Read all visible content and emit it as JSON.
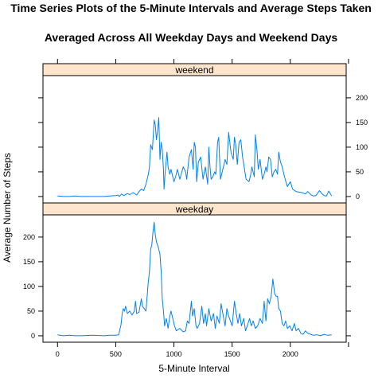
{
  "chart_data": {
    "type": "line",
    "title_line1": "Time Series Plots of the 5-Minute Intervals and Average Steps Taken",
    "title_line2": "Averaged Across All Weekday Days and Weekend Days",
    "xlabel": "5-Minute Interval",
    "ylabel": "Average Number of Steps",
    "xlim": [
      -125,
      2480
    ],
    "ylim": [
      -13,
      245
    ],
    "x_ticks": [
      0,
      500,
      1000,
      1500,
      2000
    ],
    "y_ticks": [
      0,
      50,
      100,
      150,
      200
    ],
    "line_color": "#0080ff",
    "strip_color": "#ffe5cc",
    "panels": [
      {
        "strip": "weekend",
        "y_axis_side": "right",
        "points": [
          [
            0,
            1
          ],
          [
            50,
            0
          ],
          [
            100,
            0
          ],
          [
            150,
            1
          ],
          [
            200,
            0
          ],
          [
            300,
            0
          ],
          [
            400,
            0
          ],
          [
            450,
            1
          ],
          [
            500,
            2
          ],
          [
            520,
            3
          ],
          [
            530,
            0
          ],
          [
            550,
            5
          ],
          [
            570,
            2
          ],
          [
            600,
            6
          ],
          [
            620,
            4
          ],
          [
            650,
            8
          ],
          [
            680,
            3
          ],
          [
            700,
            10
          ],
          [
            720,
            15
          ],
          [
            740,
            12
          ],
          [
            760,
            25
          ],
          [
            780,
            45
          ],
          [
            790,
            60
          ],
          [
            800,
            105
          ],
          [
            815,
            95
          ],
          [
            830,
            155
          ],
          [
            840,
            145
          ],
          [
            850,
            115
          ],
          [
            860,
            135
          ],
          [
            870,
            160
          ],
          [
            880,
            75
          ],
          [
            890,
            110
          ],
          [
            900,
            95
          ],
          [
            910,
            55
          ],
          [
            915,
            15
          ],
          [
            925,
            50
          ],
          [
            940,
            90
          ],
          [
            950,
            60
          ],
          [
            965,
            45
          ],
          [
            975,
            55
          ],
          [
            1000,
            30
          ],
          [
            1015,
            40
          ],
          [
            1030,
            55
          ],
          [
            1050,
            35
          ],
          [
            1080,
            60
          ],
          [
            1100,
            50
          ],
          [
            1110,
            35
          ],
          [
            1130,
            80
          ],
          [
            1150,
            95
          ],
          [
            1165,
            55
          ],
          [
            1175,
            110
          ],
          [
            1185,
            100
          ],
          [
            1195,
            30
          ],
          [
            1210,
            70
          ],
          [
            1230,
            80
          ],
          [
            1250,
            35
          ],
          [
            1270,
            60
          ],
          [
            1290,
            25
          ],
          [
            1300,
            100
          ],
          [
            1310,
            60
          ],
          [
            1320,
            35
          ],
          [
            1335,
            40
          ],
          [
            1350,
            50
          ],
          [
            1360,
            45
          ],
          [
            1375,
            110
          ],
          [
            1385,
            120
          ],
          [
            1400,
            35
          ],
          [
            1420,
            55
          ],
          [
            1440,
            75
          ],
          [
            1455,
            65
          ],
          [
            1470,
            130
          ],
          [
            1490,
            90
          ],
          [
            1510,
            75
          ],
          [
            1520,
            120
          ],
          [
            1530,
            105
          ],
          [
            1545,
            65
          ],
          [
            1560,
            110
          ],
          [
            1575,
            115
          ],
          [
            1590,
            80
          ],
          [
            1600,
            65
          ],
          [
            1620,
            35
          ],
          [
            1645,
            30
          ],
          [
            1660,
            45
          ],
          [
            1670,
            60
          ],
          [
            1690,
            40
          ],
          [
            1700,
            125
          ],
          [
            1715,
            90
          ],
          [
            1725,
            55
          ],
          [
            1740,
            75
          ],
          [
            1760,
            35
          ],
          [
            1775,
            45
          ],
          [
            1790,
            60
          ],
          [
            1800,
            50
          ],
          [
            1815,
            80
          ],
          [
            1830,
            75
          ],
          [
            1845,
            40
          ],
          [
            1860,
            50
          ],
          [
            1875,
            55
          ],
          [
            1890,
            45
          ],
          [
            1900,
            90
          ],
          [
            1915,
            70
          ],
          [
            1930,
            60
          ],
          [
            1950,
            40
          ],
          [
            1975,
            20
          ],
          [
            2000,
            30
          ],
          [
            2020,
            15
          ],
          [
            2050,
            10
          ],
          [
            2100,
            8
          ],
          [
            2130,
            5
          ],
          [
            2150,
            10
          ],
          [
            2180,
            3
          ],
          [
            2200,
            1
          ],
          [
            2220,
            2
          ],
          [
            2250,
            12
          ],
          [
            2270,
            6
          ],
          [
            2290,
            2
          ],
          [
            2310,
            1
          ],
          [
            2330,
            11
          ],
          [
            2355,
            1
          ]
        ]
      },
      {
        "strip": "weekday",
        "y_axis_side": "left",
        "points": [
          [
            0,
            2
          ],
          [
            50,
            0
          ],
          [
            100,
            1
          ],
          [
            150,
            0
          ],
          [
            200,
            0
          ],
          [
            300,
            1
          ],
          [
            400,
            0
          ],
          [
            450,
            1
          ],
          [
            500,
            1
          ],
          [
            525,
            2
          ],
          [
            545,
            22
          ],
          [
            555,
            45
          ],
          [
            565,
            55
          ],
          [
            575,
            50
          ],
          [
            585,
            60
          ],
          [
            600,
            45
          ],
          [
            620,
            50
          ],
          [
            640,
            42
          ],
          [
            660,
            50
          ],
          [
            670,
            70
          ],
          [
            680,
            45
          ],
          [
            700,
            48
          ],
          [
            720,
            75
          ],
          [
            730,
            60
          ],
          [
            745,
            55
          ],
          [
            760,
            50
          ],
          [
            780,
            110
          ],
          [
            790,
            130
          ],
          [
            800,
            175
          ],
          [
            810,
            185
          ],
          [
            820,
            210
          ],
          [
            830,
            230
          ],
          [
            840,
            205
          ],
          [
            850,
            190
          ],
          [
            865,
            180
          ],
          [
            880,
            165
          ],
          [
            890,
            130
          ],
          [
            900,
            75
          ],
          [
            910,
            50
          ],
          [
            920,
            20
          ],
          [
            935,
            35
          ],
          [
            950,
            15
          ],
          [
            965,
            40
          ],
          [
            975,
            50
          ],
          [
            990,
            35
          ],
          [
            1005,
            20
          ],
          [
            1020,
            10
          ],
          [
            1050,
            15
          ],
          [
            1080,
            8
          ],
          [
            1100,
            10
          ],
          [
            1115,
            30
          ],
          [
            1130,
            25
          ],
          [
            1150,
            70
          ],
          [
            1160,
            40
          ],
          [
            1175,
            55
          ],
          [
            1190,
            20
          ],
          [
            1200,
            15
          ],
          [
            1220,
            25
          ],
          [
            1240,
            60
          ],
          [
            1255,
            25
          ],
          [
            1270,
            45
          ],
          [
            1280,
            20
          ],
          [
            1300,
            55
          ],
          [
            1320,
            30
          ],
          [
            1340,
            45
          ],
          [
            1355,
            15
          ],
          [
            1370,
            40
          ],
          [
            1390,
            25
          ],
          [
            1405,
            65
          ],
          [
            1420,
            45
          ],
          [
            1440,
            20
          ],
          [
            1455,
            55
          ],
          [
            1470,
            40
          ],
          [
            1485,
            30
          ],
          [
            1500,
            20
          ],
          [
            1520,
            70
          ],
          [
            1535,
            45
          ],
          [
            1550,
            25
          ],
          [
            1565,
            45
          ],
          [
            1580,
            20
          ],
          [
            1600,
            35
          ],
          [
            1615,
            10
          ],
          [
            1630,
            20
          ],
          [
            1650,
            35
          ],
          [
            1665,
            20
          ],
          [
            1680,
            30
          ],
          [
            1700,
            15
          ],
          [
            1720,
            20
          ],
          [
            1740,
            35
          ],
          [
            1760,
            25
          ],
          [
            1775,
            70
          ],
          [
            1790,
            30
          ],
          [
            1805,
            75
          ],
          [
            1820,
            65
          ],
          [
            1835,
            80
          ],
          [
            1850,
            115
          ],
          [
            1865,
            85
          ],
          [
            1880,
            80
          ],
          [
            1890,
            80
          ],
          [
            1900,
            55
          ],
          [
            1915,
            50
          ],
          [
            1930,
            25
          ],
          [
            1945,
            20
          ],
          [
            1960,
            30
          ],
          [
            1975,
            15
          ],
          [
            1995,
            20
          ],
          [
            2015,
            10
          ],
          [
            2035,
            25
          ],
          [
            2050,
            10
          ],
          [
            2070,
            15
          ],
          [
            2090,
            5
          ],
          [
            2110,
            3
          ],
          [
            2130,
            10
          ],
          [
            2150,
            5
          ],
          [
            2175,
            3
          ],
          [
            2200,
            1
          ],
          [
            2230,
            2
          ],
          [
            2260,
            0
          ],
          [
            2290,
            3
          ],
          [
            2320,
            1
          ],
          [
            2355,
            2
          ]
        ]
      }
    ]
  }
}
